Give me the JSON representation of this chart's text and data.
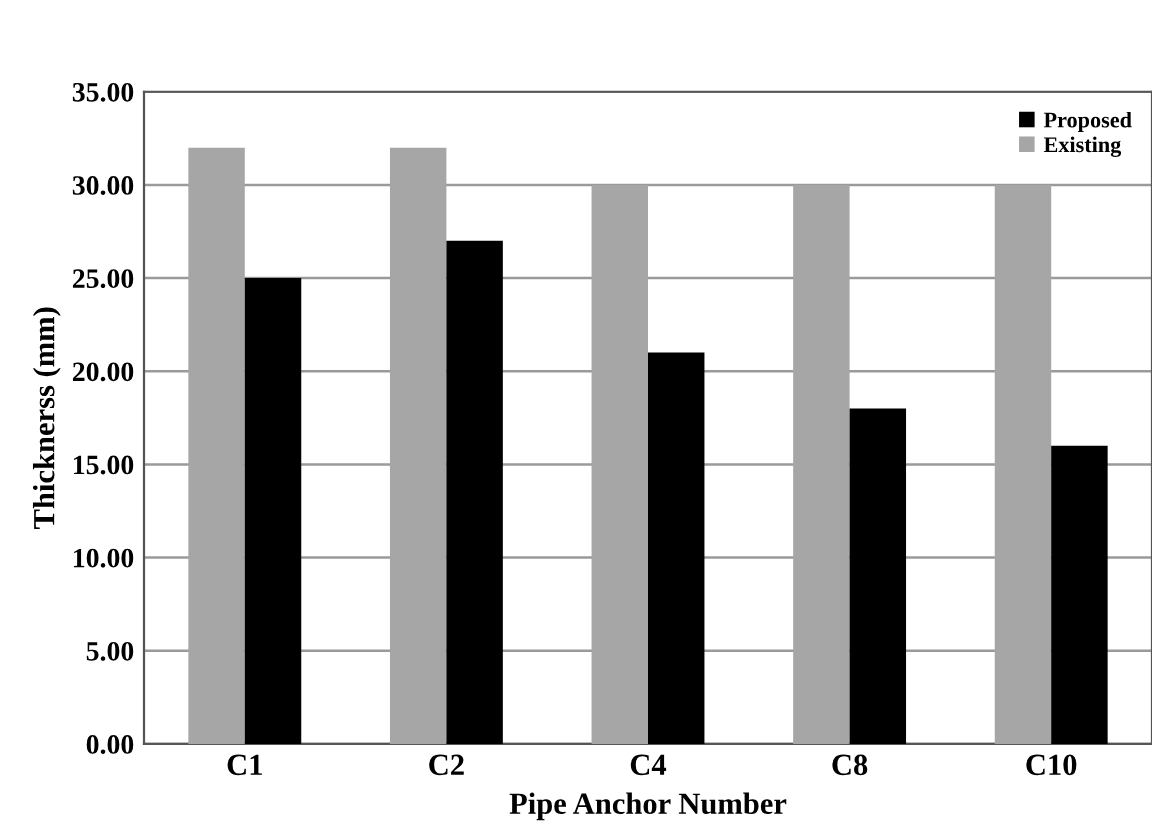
{
  "chart_data": {
    "type": "bar",
    "xlabel": "Pipe Anchor Number",
    "ylabel": "Thicknerss (mm)",
    "categories": [
      "C1",
      "C2",
      "C4",
      "C8",
      "C10"
    ],
    "series": [
      {
        "name": "Existing",
        "color": "#a6a6a6",
        "values": [
          32,
          32,
          30,
          30,
          30
        ]
      },
      {
        "name": "Proposed",
        "color": "#000000",
        "values": [
          25,
          27,
          21,
          18,
          16
        ]
      }
    ],
    "ylim": [
      0,
      35
    ],
    "yticks": [
      {
        "value": 0,
        "label": "0.00"
      },
      {
        "value": 5,
        "label": "5.00"
      },
      {
        "value": 10,
        "label": "10.00"
      },
      {
        "value": 15,
        "label": "15.00"
      },
      {
        "value": 20,
        "label": "20.00"
      },
      {
        "value": 25,
        "label": "25.00"
      },
      {
        "value": 30,
        "label": "30.00"
      },
      {
        "value": 35,
        "label": "35.00"
      }
    ],
    "grid": "y",
    "legend": "top right"
  }
}
